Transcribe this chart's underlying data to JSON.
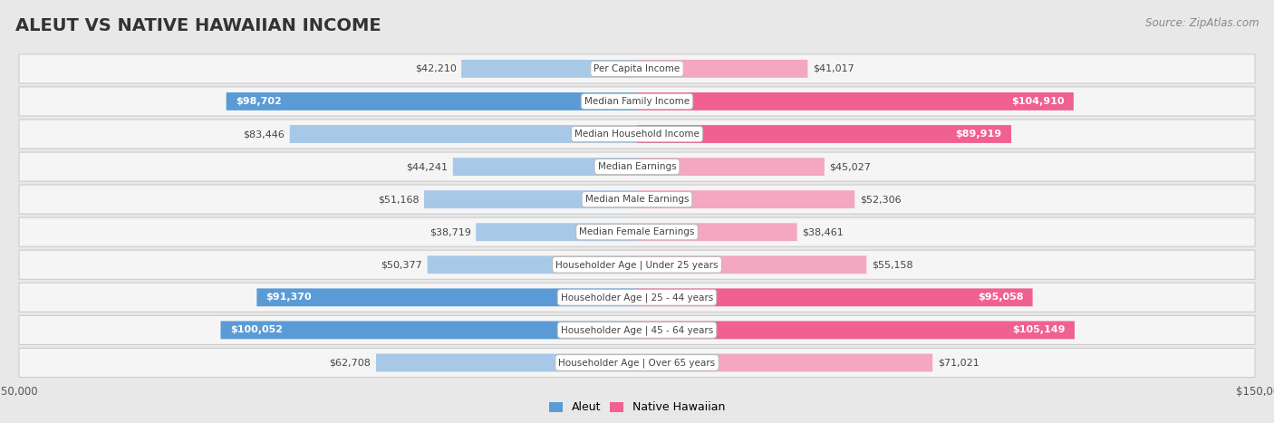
{
  "title": "ALEUT VS NATIVE HAWAIIAN INCOME",
  "source": "Source: ZipAtlas.com",
  "categories": [
    "Per Capita Income",
    "Median Family Income",
    "Median Household Income",
    "Median Earnings",
    "Median Male Earnings",
    "Median Female Earnings",
    "Householder Age | Under 25 years",
    "Householder Age | 25 - 44 years",
    "Householder Age | 45 - 64 years",
    "Householder Age | Over 65 years"
  ],
  "aleut_values": [
    42210,
    98702,
    83446,
    44241,
    51168,
    38719,
    50377,
    91370,
    100052,
    62708
  ],
  "native_values": [
    41017,
    104910,
    89919,
    45027,
    52306,
    38461,
    55158,
    95058,
    105149,
    71021
  ],
  "aleut_labels": [
    "$42,210",
    "$98,702",
    "$83,446",
    "$44,241",
    "$51,168",
    "$38,719",
    "$50,377",
    "$91,370",
    "$100,052",
    "$62,708"
  ],
  "native_labels": [
    "$41,017",
    "$104,910",
    "$89,919",
    "$45,027",
    "$52,306",
    "$38,461",
    "$55,158",
    "$95,058",
    "$105,149",
    "$71,021"
  ],
  "max_value": 150000,
  "aleut_color_light": "#a8c8e8",
  "aleut_color_dark": "#5b9bd5",
  "native_color_light": "#f4a7c0",
  "native_color_dark": "#f06090",
  "bg_color": "#e8e8e8",
  "row_bg_light": "#f5f5f5",
  "row_bg_dark": "#e0e0e0",
  "aleut_label_threshold": 85000,
  "native_label_threshold": 85000,
  "title_fontsize": 14,
  "source_fontsize": 8.5,
  "bar_label_fontsize": 8,
  "category_fontsize": 7.5,
  "axis_label_fontsize": 8.5,
  "legend_fontsize": 9
}
